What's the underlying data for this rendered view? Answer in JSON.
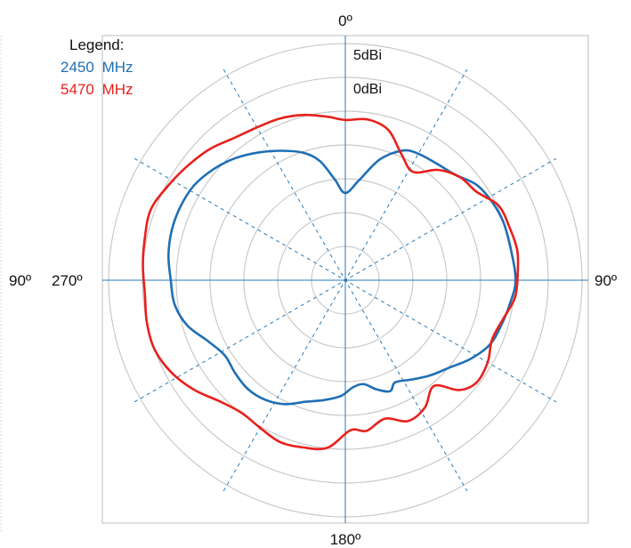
{
  "chart_data": {
    "type": "polar",
    "legend_title": "Legend:",
    "angle_labels": {
      "top": "0º",
      "right": "90º",
      "bottom": "180º",
      "left_outer": "90º",
      "left_inner": "270º"
    },
    "ring_labels": [
      "5dBi",
      "0dBi"
    ],
    "legend_placement": "top-left",
    "grid": true,
    "colors": {
      "axis_line": "#2a7ab8",
      "spoke_line": "#2a7ab8",
      "ring": "#c9c9c9",
      "frame": "#bdbdbd"
    },
    "series": [
      {
        "freq": "2450",
        "unit": "MHz",
        "color": "#1f6fb4",
        "points": [
          [
            0,
            0.43
          ],
          [
            8,
            0.5
          ],
          [
            16,
            0.62
          ],
          [
            24,
            0.7
          ],
          [
            30,
            0.72
          ],
          [
            38,
            0.73
          ],
          [
            46,
            0.75
          ],
          [
            54,
            0.8
          ],
          [
            62,
            0.82
          ],
          [
            70,
            0.83
          ],
          [
            80,
            0.83
          ],
          [
            90,
            0.84
          ],
          [
            98,
            0.82
          ],
          [
            106,
            0.8
          ],
          [
            114,
            0.78
          ],
          [
            122,
            0.73
          ],
          [
            130,
            0.67
          ],
          [
            138,
            0.63
          ],
          [
            146,
            0.59
          ],
          [
            154,
            0.56
          ],
          [
            158,
            0.59
          ],
          [
            164,
            0.56
          ],
          [
            170,
            0.52
          ],
          [
            176,
            0.53
          ],
          [
            182,
            0.57
          ],
          [
            190,
            0.6
          ],
          [
            198,
            0.63
          ],
          [
            206,
            0.68
          ],
          [
            214,
            0.71
          ],
          [
            222,
            0.72
          ],
          [
            230,
            0.71
          ],
          [
            238,
            0.7
          ],
          [
            246,
            0.74
          ],
          [
            254,
            0.81
          ],
          [
            262,
            0.85
          ],
          [
            270,
            0.86
          ],
          [
            278,
            0.88
          ],
          [
            286,
            0.89
          ],
          [
            294,
            0.89
          ],
          [
            302,
            0.88
          ],
          [
            310,
            0.85
          ],
          [
            318,
            0.81
          ],
          [
            326,
            0.76
          ],
          [
            334,
            0.71
          ],
          [
            342,
            0.66
          ],
          [
            348,
            0.6
          ],
          [
            354,
            0.5
          ],
          [
            360,
            0.43
          ]
        ]
      },
      {
        "freq": "5470",
        "unit": "MHz",
        "color": "#e8201c",
        "points": [
          [
            0,
            0.79
          ],
          [
            8,
            0.8
          ],
          [
            16,
            0.77
          ],
          [
            24,
            0.68
          ],
          [
            32,
            0.63
          ],
          [
            40,
            0.71
          ],
          [
            48,
            0.76
          ],
          [
            56,
            0.78
          ],
          [
            64,
            0.84
          ],
          [
            72,
            0.85
          ],
          [
            80,
            0.86
          ],
          [
            88,
            0.85
          ],
          [
            96,
            0.84
          ],
          [
            104,
            0.8
          ],
          [
            112,
            0.78
          ],
          [
            120,
            0.81
          ],
          [
            128,
            0.82
          ],
          [
            134,
            0.78
          ],
          [
            140,
            0.68
          ],
          [
            148,
            0.74
          ],
          [
            156,
            0.76
          ],
          [
            164,
            0.71
          ],
          [
            172,
            0.75
          ],
          [
            178,
            0.74
          ],
          [
            186,
            0.83
          ],
          [
            194,
            0.85
          ],
          [
            202,
            0.86
          ],
          [
            210,
            0.84
          ],
          [
            218,
            0.83
          ],
          [
            226,
            0.86
          ],
          [
            234,
            0.92
          ],
          [
            242,
            0.97
          ],
          [
            250,
            1.0
          ],
          [
            258,
            1.0
          ],
          [
            266,
            0.99
          ],
          [
            274,
            1.0
          ],
          [
            282,
            1.01
          ],
          [
            290,
            1.02
          ],
          [
            298,
            0.99
          ],
          [
            306,
            0.96
          ],
          [
            314,
            0.93
          ],
          [
            322,
            0.89
          ],
          [
            330,
            0.87
          ],
          [
            338,
            0.86
          ],
          [
            346,
            0.84
          ],
          [
            354,
            0.81
          ],
          [
            360,
            0.79
          ]
        ]
      }
    ]
  }
}
